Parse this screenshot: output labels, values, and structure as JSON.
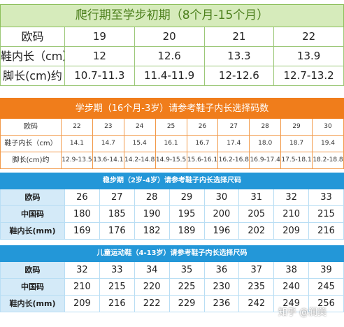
{
  "crawling": {
    "title": "爬行期至学步初期（8个月-15个月）",
    "rows": [
      {
        "label": "欧码",
        "values": [
          "19",
          "20",
          "21",
          "22"
        ]
      },
      {
        "label": "鞋内长（cm）",
        "values": [
          "12",
          "12.6",
          "13.3",
          "13.9"
        ]
      },
      {
        "label": "脚长(cm)约",
        "values": [
          "10.7-11.3",
          "11.4-11.9",
          "12-12.6",
          "12.7-13.2"
        ]
      }
    ]
  },
  "learning": {
    "title": "学步期（16个月-3岁）请参考鞋子内长选择码数",
    "rows": [
      {
        "label": "欧码",
        "values": [
          "22",
          "23",
          "24",
          "25",
          "26",
          "27",
          "28",
          "29",
          "30"
        ]
      },
      {
        "label": "鞋子内长（cm）",
        "values": [
          "14.1",
          "14.7",
          "15.4",
          "16.1",
          "16.7",
          "17.4",
          "18.0",
          "18.7",
          "19.4"
        ]
      },
      {
        "label": "脚长(cm)约",
        "values": [
          "12.9-13.5",
          "13.6-14.1",
          "14.2-14.8",
          "14.9-15.5",
          "15.6-16.1",
          "16.2-16.8",
          "16.9-17.4",
          "17.5-18.1",
          "18.2-18.8"
        ]
      }
    ]
  },
  "steady": {
    "title": "稳步期（2岁-4岁）请参考鞋子内长选择尺码",
    "rows": [
      {
        "label": "欧码",
        "values": [
          "26",
          "27",
          "28",
          "29",
          "30",
          "31",
          "32",
          "33"
        ]
      },
      {
        "label": "中国码",
        "values": [
          "180",
          "185",
          "190",
          "195",
          "200",
          "205",
          "210",
          "215"
        ]
      },
      {
        "label": "鞋内长(mm)",
        "values": [
          "169",
          "176",
          "182",
          "189",
          "196",
          "202",
          "209",
          "216"
        ]
      }
    ]
  },
  "sports": {
    "title": "儿童运动鞋（4-13岁）请参考鞋子内长选择尺码",
    "rows": [
      {
        "label": "欧码",
        "values": [
          "32",
          "33",
          "34",
          "35",
          "36",
          "37",
          "38",
          "39"
        ]
      },
      {
        "label": "中国码",
        "values": [
          "210",
          "215",
          "220",
          "225",
          "230",
          "235",
          "240",
          "245"
        ]
      },
      {
        "label": "鞋内长(mm)",
        "values": [
          "209",
          "216",
          "222",
          "229",
          "236",
          "242",
          "249",
          "256"
        ]
      }
    ]
  },
  "watermark": "知乎 @润美"
}
